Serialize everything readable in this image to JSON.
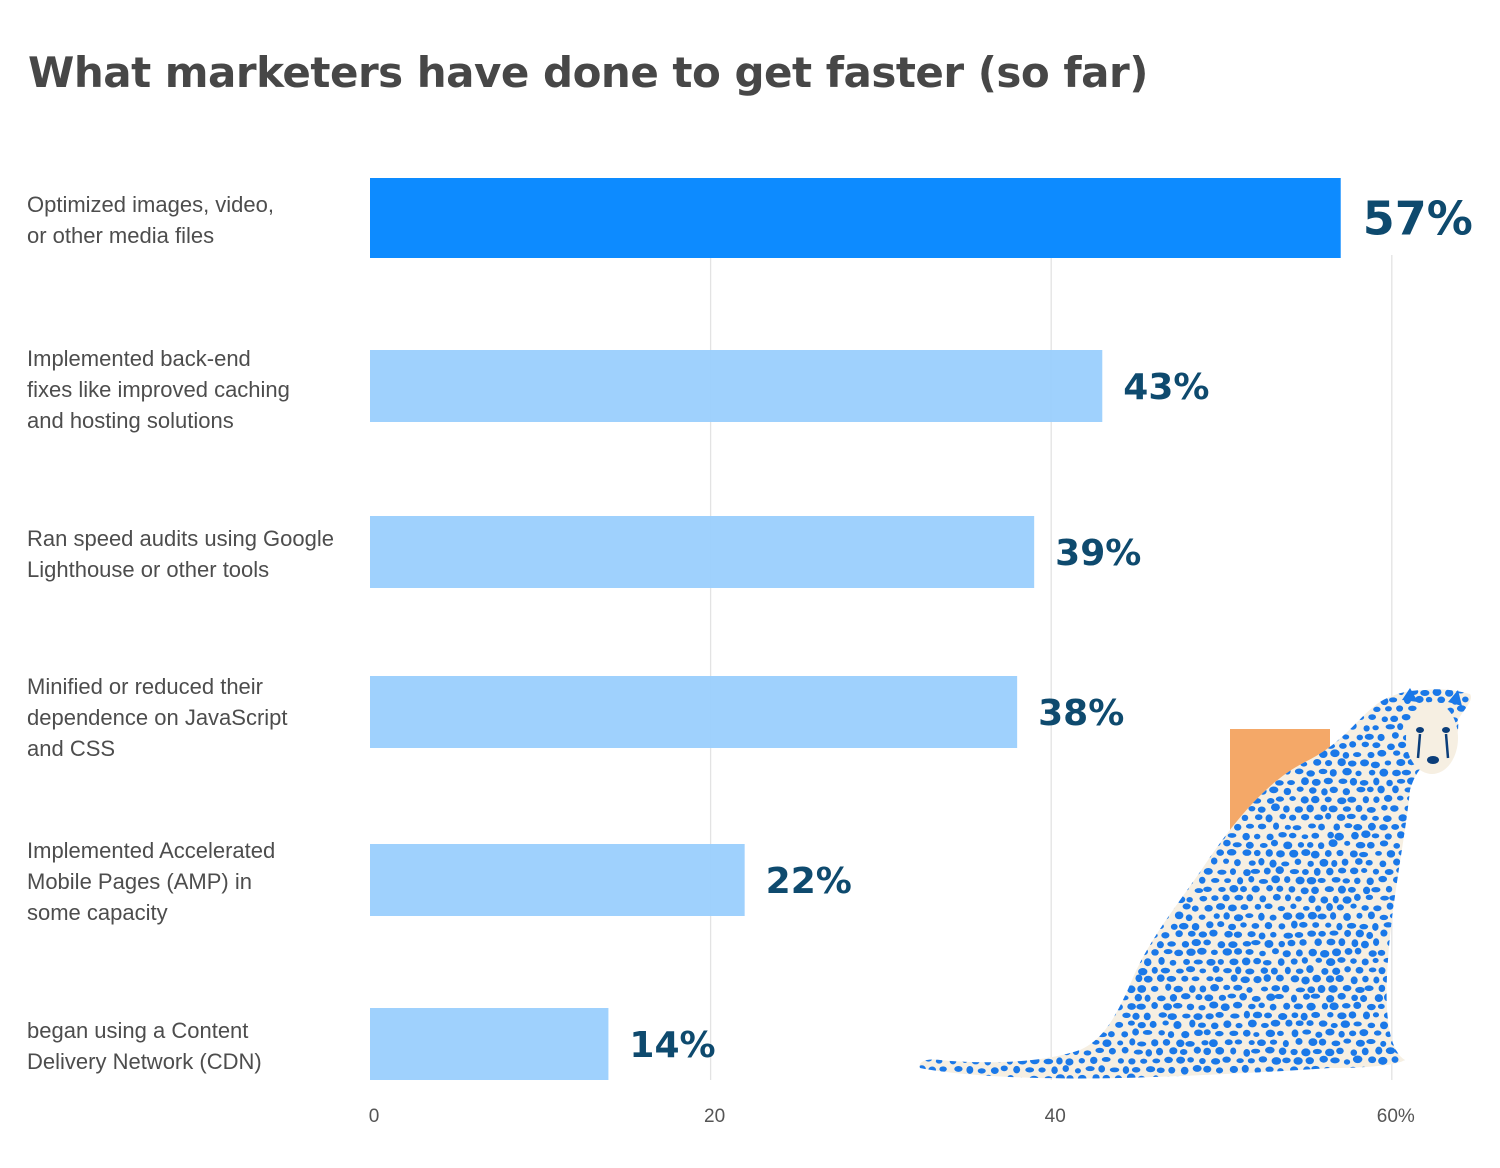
{
  "chart_data": {
    "type": "bar",
    "orientation": "horizontal",
    "title": "What marketers have done to get faster (so far)",
    "categories": [
      [
        "Optimized images, video,",
        "or other media files"
      ],
      [
        "Implemented back-end",
        "fixes like improved caching",
        "and hosting solutions"
      ],
      [
        "Ran speed audits using Google",
        "Lighthouse or other tools"
      ],
      [
        "Minified or reduced their",
        "dependence on JavaScript",
        "and CSS"
      ],
      [
        "Implemented Accelerated",
        "Mobile Pages (AMP) in",
        "some capacity"
      ],
      [
        "began using a Content",
        "Delivery Network (CDN)"
      ]
    ],
    "values": [
      57,
      43,
      39,
      38,
      22,
      14
    ],
    "value_labels": [
      "57%",
      "43%",
      "39%",
      "38%",
      "22%",
      "14%"
    ],
    "xlim": [
      0,
      60
    ],
    "ticks": [
      0,
      20,
      40,
      60
    ],
    "tick_labels": [
      "0",
      "20",
      "40",
      "60%"
    ],
    "grid": true,
    "colors": {
      "highlight": "#0d8bff",
      "bar": "#9acffd",
      "value_text": "#0e4a6e",
      "grid": "#e3e3e3",
      "illustration_blue": "#1a78e8",
      "illustration_accent": "#f4a868",
      "illustration_cream": "#f6efe2"
    }
  },
  "illustration": "cheetah-illustration"
}
